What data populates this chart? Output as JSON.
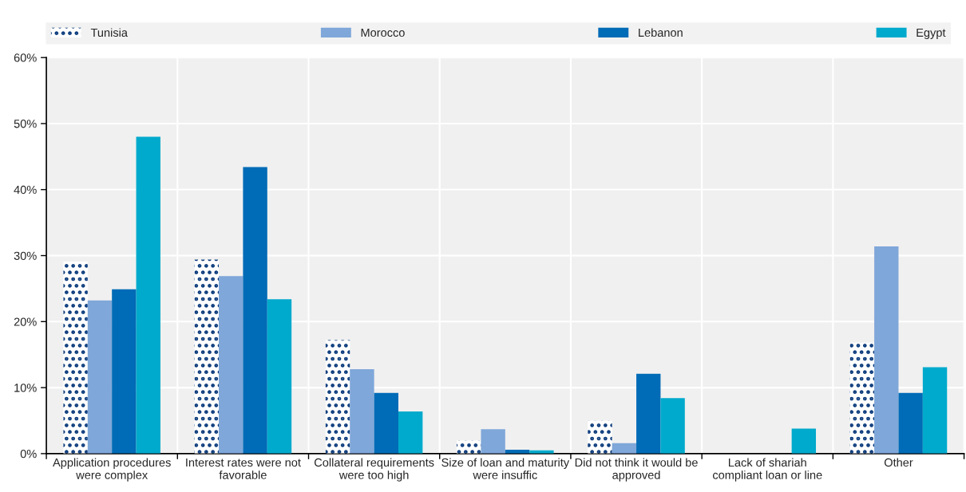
{
  "chart_data": {
    "type": "bar",
    "categories": [
      "Application procedures\nwere complex",
      "Interest rates were not\nfavorable",
      "Collateral requirements\nwere too high",
      "Size of loan and maturity\nwere insuffic",
      "Did not think it would be\napproved",
      "Lack of shariah\ncompliant loan or line",
      "Other"
    ],
    "series": [
      {
        "name": "Tunisia",
        "color": "#0b3b7c",
        "values": [
          29.1,
          29.4,
          17.2,
          2.0,
          5.0,
          null,
          16.8
        ]
      },
      {
        "name": "Morocco",
        "color": "#7fa7d9",
        "values": [
          23.2,
          26.9,
          12.8,
          3.7,
          1.6,
          null,
          31.4
        ]
      },
      {
        "name": "Lebanon",
        "color": "#006bb6",
        "values": [
          24.9,
          43.4,
          9.2,
          0.6,
          12.1,
          null,
          9.2
        ]
      },
      {
        "name": "Egypt",
        "color": "#00aacc",
        "values": [
          48.0,
          23.4,
          6.4,
          0.5,
          8.4,
          3.8,
          13.1
        ]
      }
    ],
    "ylim": [
      0,
      60
    ],
    "yticks": [
      {
        "value": 0,
        "label": "0%"
      },
      {
        "value": 10,
        "label": "10%"
      },
      {
        "value": 20,
        "label": "20%"
      },
      {
        "value": 30,
        "label": "30%"
      },
      {
        "value": 40,
        "label": "40%"
      },
      {
        "value": 50,
        "label": "50%"
      },
      {
        "value": 60,
        "label": "60%"
      }
    ],
    "grid": true,
    "legend": "top"
  }
}
